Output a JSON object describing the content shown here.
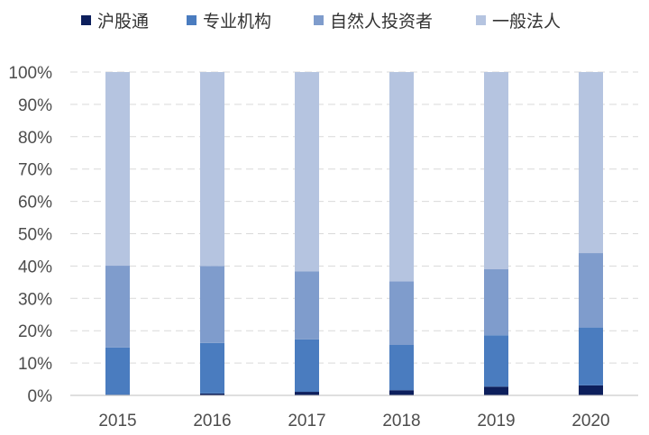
{
  "chart_data": {
    "type": "bar",
    "stacked": true,
    "percent": true,
    "categories": [
      "2015",
      "2016",
      "2017",
      "2018",
      "2019",
      "2020"
    ],
    "series": [
      {
        "name": "沪股通",
        "color": "#0d1f5c",
        "values": [
          0.2,
          0.6,
          1.1,
          1.6,
          2.7,
          3.1
        ]
      },
      {
        "name": "专业机构",
        "color": "#4a7cbf",
        "values": [
          14.6,
          15.6,
          16.2,
          14.0,
          15.9,
          17.9
        ]
      },
      {
        "name": "自然人投资者",
        "color": "#7f9ccc",
        "values": [
          25.3,
          23.8,
          21.0,
          19.7,
          20.4,
          23.0
        ]
      },
      {
        "name": "一般法人",
        "color": "#b5c4e0",
        "values": [
          59.9,
          60.0,
          61.7,
          64.7,
          61.0,
          56.0
        ]
      }
    ],
    "yticks": [
      "0%",
      "10%",
      "20%",
      "30%",
      "40%",
      "50%",
      "60%",
      "70%",
      "80%",
      "90%",
      "100%"
    ],
    "ylim": [
      0,
      100
    ],
    "grid": true,
    "legend": "top"
  }
}
